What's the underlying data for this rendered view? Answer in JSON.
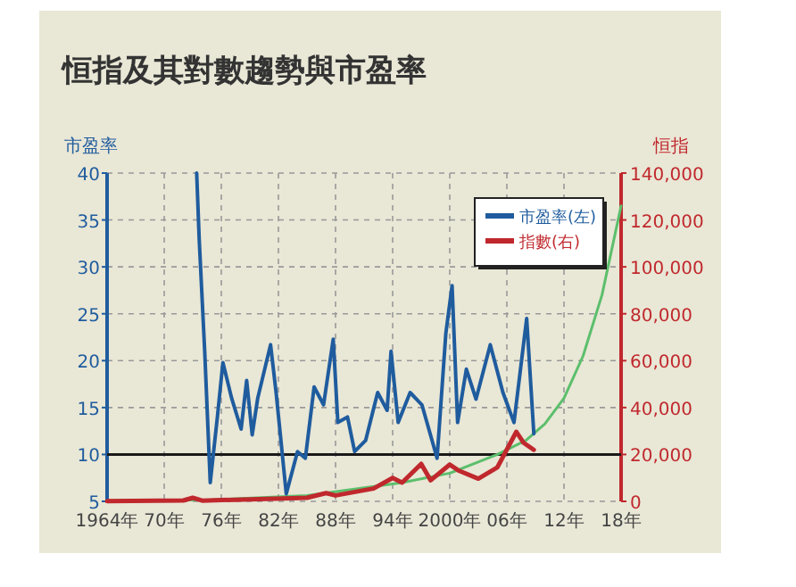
{
  "chart_data": {
    "type": "line",
    "title": "恒指及其對數趨勢與市盈率",
    "ylabel": "市盈率",
    "y2label": "恒指",
    "xlim": [
      "1964",
      "2018"
    ],
    "xticks": [
      {
        "value": "1964",
        "label": "1964年"
      },
      {
        "value": "1970",
        "label": "70年"
      },
      {
        "value": "1976",
        "label": "76年"
      },
      {
        "value": "1982",
        "label": "82年"
      },
      {
        "value": "1988",
        "label": "88年"
      },
      {
        "value": "1994",
        "label": "94年"
      },
      {
        "value": "2000",
        "label": "2000年"
      },
      {
        "value": "2006",
        "label": "06年"
      },
      {
        "value": "2012",
        "label": "12年"
      },
      {
        "value": "2018",
        "label": "18年"
      }
    ],
    "ylim": [
      5,
      40
    ],
    "yticks": [
      5,
      10,
      15,
      20,
      25,
      30,
      35,
      40
    ],
    "y2lim": [
      0,
      140000
    ],
    "y2ticks": [
      0,
      {
        "value": 20000,
        "label": "20,000"
      },
      {
        "value": 40000,
        "label": "40,000"
      },
      {
        "value": 60000,
        "label": "60,000"
      },
      {
        "value": 80000,
        "label": "80,000"
      },
      {
        "value": 100000,
        "label": "100,000"
      },
      {
        "value": 120000,
        "label": "120,000"
      },
      {
        "value": 140000,
        "label": "140,000"
      }
    ],
    "grid": true,
    "legend": "top right",
    "ref_lines": [
      {
        "axis": "y",
        "value": 10,
        "color": "#1a1a1a"
      }
    ],
    "series": [
      {
        "type": "line",
        "axis": "y2",
        "color": "#5cbf6c",
        "x": [
          "1964",
          "1975",
          "1985",
          "1995",
          "2000",
          "2005",
          "2008",
          "2010",
          "2012",
          "2014",
          "2016",
          "2018"
        ],
        "values": [
          300,
          700,
          2500,
          8000,
          12000,
          20000,
          26000,
          33000,
          44000,
          62000,
          88000,
          126000
        ]
      },
      {
        "name": "指數(右)",
        "type": "line",
        "axis": "y2",
        "color": "#c0282d",
        "x": [
          "1964-01",
          "1972-01",
          "1973-01",
          "1974-01",
          "1980-01",
          "1985-01",
          "1987-01",
          "1988-01",
          "1992-01",
          "1994-01",
          "1995-01",
          "1997-01",
          "1998-01",
          "2000-01",
          "2001-01",
          "2003-01",
          "2005-01",
          "2007-01",
          "2007-10",
          "2008-11"
        ],
        "values": [
          100,
          400,
          1500,
          300,
          1000,
          1500,
          3500,
          2500,
          5500,
          10000,
          8000,
          16000,
          9000,
          15700,
          13000,
          9700,
          14500,
          29700,
          25000,
          22000
        ]
      },
      {
        "name": "市盈率(左)",
        "type": "line",
        "axis": "y",
        "color": "#1f5c9e",
        "x": [
          "1973-06",
          "1973-09",
          "1974-04",
          "1974-11",
          "1975-08",
          "1976-03",
          "1977-02",
          "1978-02",
          "1978-09",
          "1979-04",
          "1979-11",
          "1981-03",
          "1981-10",
          "1982-11",
          "1984-01",
          "1984-11",
          "1985-10",
          "1986-10",
          "1987-10",
          "1988-04",
          "1989-04",
          "1990-01",
          "1991-03",
          "1992-06",
          "1993-06",
          "1993-11",
          "1994-08",
          "1995-11",
          "1997-02",
          "1998-09",
          "1999-08",
          "2000-04",
          "2000-11",
          "2001-10",
          "2002-10",
          "2004-04",
          "2005-08",
          "2006-10",
          "2008-02",
          "2008-11"
        ],
        "values": [
          40,
          33,
          21,
          7,
          14,
          19.8,
          16,
          12.7,
          17.9,
          12.1,
          16,
          21.7,
          16.6,
          5.8,
          10.3,
          9.6,
          17.2,
          15.3,
          22.3,
          13.4,
          14,
          10.3,
          11.5,
          16.6,
          14.7,
          21,
          13.4,
          16.6,
          15.3,
          9.6,
          22.9,
          28,
          13.4,
          19.1,
          15.9,
          21.7,
          16.6,
          13.4,
          24.5,
          12.2
        ]
      }
    ]
  }
}
